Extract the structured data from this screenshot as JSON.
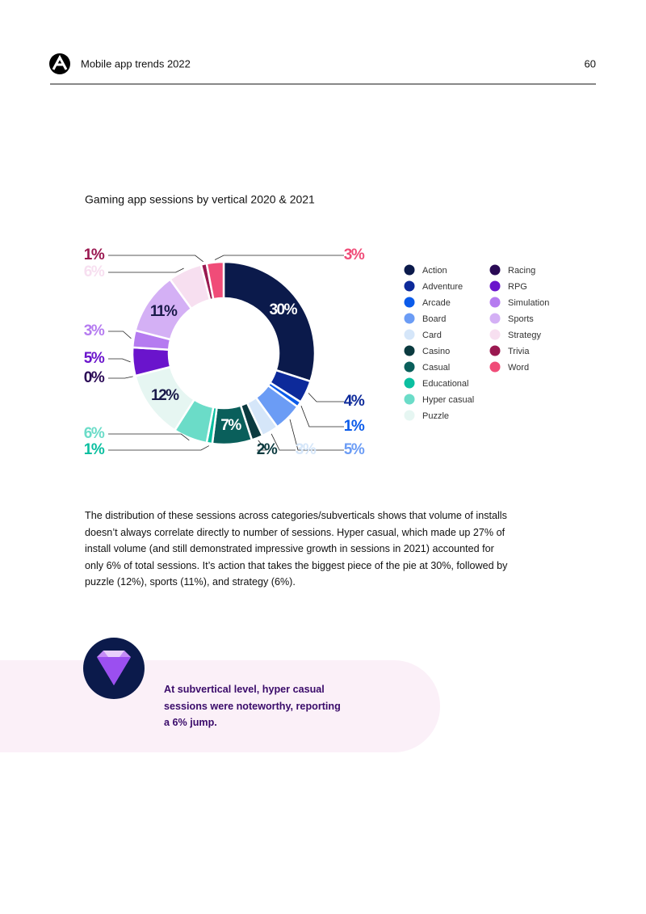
{
  "header": {
    "title": "Mobile app trends 2022",
    "page": "60"
  },
  "chart_data": {
    "type": "pie",
    "donut": true,
    "title": "Gaming app sessions by vertical 2020 & 2021",
    "categories": [
      "Action",
      "Adventure",
      "Arcade",
      "Board",
      "Card",
      "Casino",
      "Casual",
      "Educational",
      "Hyper casual",
      "Puzzle",
      "Racing",
      "RPG",
      "Simulation",
      "Sports",
      "Strategy",
      "Trivia",
      "Word"
    ],
    "values": [
      30,
      4,
      1,
      5,
      3,
      2,
      7,
      1,
      6,
      12,
      0,
      5,
      3,
      11,
      6,
      1,
      3
    ],
    "value_labels": [
      "30%",
      "4%",
      "1%",
      "5%",
      "3%",
      "2%",
      "7%",
      "1%",
      "6%",
      "12%",
      "0%",
      "5%",
      "3%",
      "11%",
      "6%",
      "1%",
      "3%"
    ],
    "colors": [
      "#0b1a4b",
      "#0d2a9a",
      "#0b5bea",
      "#6b9cf5",
      "#d5e6f9",
      "#0b3a3f",
      "#0a5f5b",
      "#0bbfa0",
      "#6bdcc8",
      "#e6f6f2",
      "#2a0a55",
      "#6a14cc",
      "#b57bf0",
      "#d4b0f5",
      "#f7dff0",
      "#9a1850",
      "#f04c78"
    ]
  },
  "body": "The distribution of these sessions across categories/subverticals shows that volume of installs doesn’t always correlate directly to number of sessions. Hyper casual, which made up 27% of install volume (and still demonstrated impressive growth in sessions in 2021) accounted for only 6% of total sessions. It’s action that takes the biggest piece of the pie at 30%, followed by puzzle (12%), sports (11%), and strategy (6%).",
  "callout": "At subvertical level, hyper casual sessions were noteworthy, reporting a 6% jump."
}
